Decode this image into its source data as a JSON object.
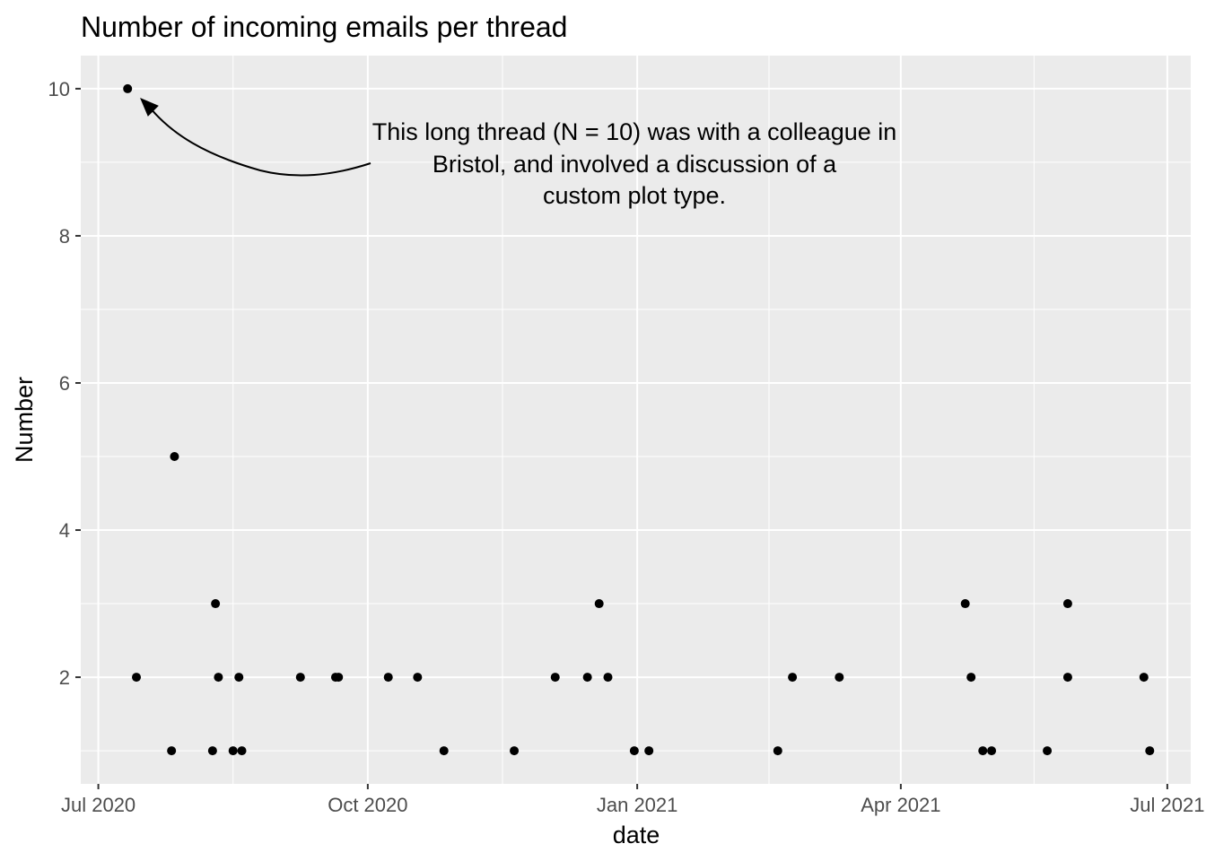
{
  "chart_data": {
    "type": "scatter",
    "title": "Number of incoming emails per thread",
    "xlabel": "date",
    "ylabel": "Number",
    "x_ticks": [
      {
        "label": "Jul 2020",
        "date": "2020-07-01"
      },
      {
        "label": "Oct 2020",
        "date": "2020-10-01"
      },
      {
        "label": "Jan 2021",
        "date": "2021-01-01"
      },
      {
        "label": "Apr 2021",
        "date": "2021-04-01"
      },
      {
        "label": "Jul 2021",
        "date": "2021-07-01"
      }
    ],
    "y_ticks": [
      2,
      4,
      6,
      8,
      10
    ],
    "xlim": [
      "2020-06-25",
      "2021-07-09"
    ],
    "ylim": [
      0.55,
      10.45
    ],
    "grid": true,
    "point_color": "#000000",
    "panel_background": "#ebebeb",
    "points": [
      {
        "date": "2020-07-11",
        "value": 10
      },
      {
        "date": "2020-07-14",
        "value": 2
      },
      {
        "date": "2020-07-26",
        "value": 1
      },
      {
        "date": "2020-07-27",
        "value": 5
      },
      {
        "date": "2020-08-09",
        "value": 1
      },
      {
        "date": "2020-08-10",
        "value": 3
      },
      {
        "date": "2020-08-11",
        "value": 2
      },
      {
        "date": "2020-08-16",
        "value": 1
      },
      {
        "date": "2020-08-18",
        "value": 2
      },
      {
        "date": "2020-08-19",
        "value": 1
      },
      {
        "date": "2020-09-08",
        "value": 2
      },
      {
        "date": "2020-09-20",
        "value": 2
      },
      {
        "date": "2020-09-21",
        "value": 2
      },
      {
        "date": "2020-10-08",
        "value": 2
      },
      {
        "date": "2020-10-18",
        "value": 2
      },
      {
        "date": "2020-10-27",
        "value": 1
      },
      {
        "date": "2020-11-20",
        "value": 1
      },
      {
        "date": "2020-12-04",
        "value": 2
      },
      {
        "date": "2020-12-15",
        "value": 2
      },
      {
        "date": "2020-12-19",
        "value": 3
      },
      {
        "date": "2020-12-22",
        "value": 2
      },
      {
        "date": "2020-12-31",
        "value": 1
      },
      {
        "date": "2021-01-05",
        "value": 1
      },
      {
        "date": "2021-02-18",
        "value": 1
      },
      {
        "date": "2021-02-23",
        "value": 2
      },
      {
        "date": "2021-03-11",
        "value": 2
      },
      {
        "date": "2021-04-23",
        "value": 3
      },
      {
        "date": "2021-04-25",
        "value": 2
      },
      {
        "date": "2021-04-29",
        "value": 1
      },
      {
        "date": "2021-05-02",
        "value": 1
      },
      {
        "date": "2021-05-21",
        "value": 1
      },
      {
        "date": "2021-05-28",
        "value": 3
      },
      {
        "date": "2021-05-28",
        "value": 2
      },
      {
        "date": "2021-06-23",
        "value": 2
      },
      {
        "date": "2021-06-25",
        "value": 1
      }
    ],
    "annotation": {
      "lines": [
        "This long thread (N = 10) was with a colleague in",
        "Bristol, and involved a discussion of a",
        "custom plot type."
      ],
      "target": {
        "date": "2020-07-11",
        "value": 10
      }
    }
  }
}
